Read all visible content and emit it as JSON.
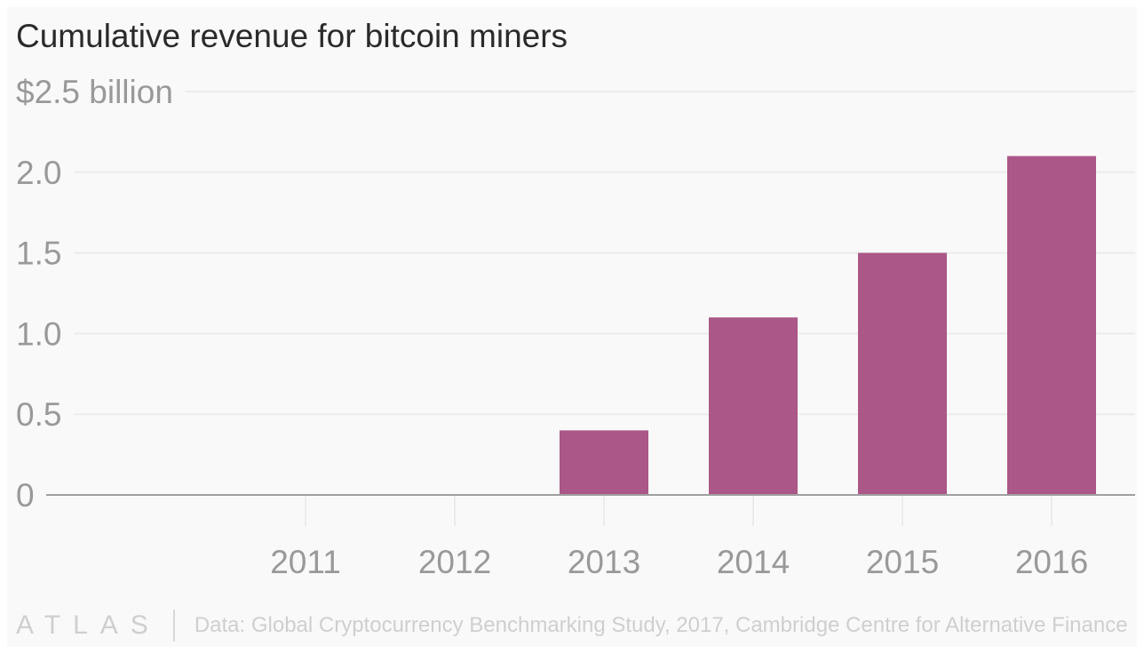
{
  "chart_data": {
    "type": "bar",
    "title": "Cumulative revenue for bitcoin miners",
    "categories": [
      "2011",
      "2012",
      "2013",
      "2014",
      "2015",
      "2016"
    ],
    "values": [
      0,
      0,
      0.4,
      1.1,
      1.5,
      2.1
    ],
    "ylim": [
      0,
      2.5
    ],
    "yticks": [
      0,
      0.5,
      1.0,
      1.5,
      2.0,
      2.5
    ],
    "ytick_labels": [
      "0",
      "0.5",
      "1.0",
      "1.5",
      "2.0",
      "$2.5 billion"
    ],
    "xlabel": "",
    "ylabel": "",
    "grid": true,
    "bar_color": "#ab5787"
  },
  "footer": {
    "logo": "ATLAS",
    "source": "Data: Global Cryptocurrency Benchmarking Study, 2017, Cambridge Centre for Alternative Finance"
  }
}
